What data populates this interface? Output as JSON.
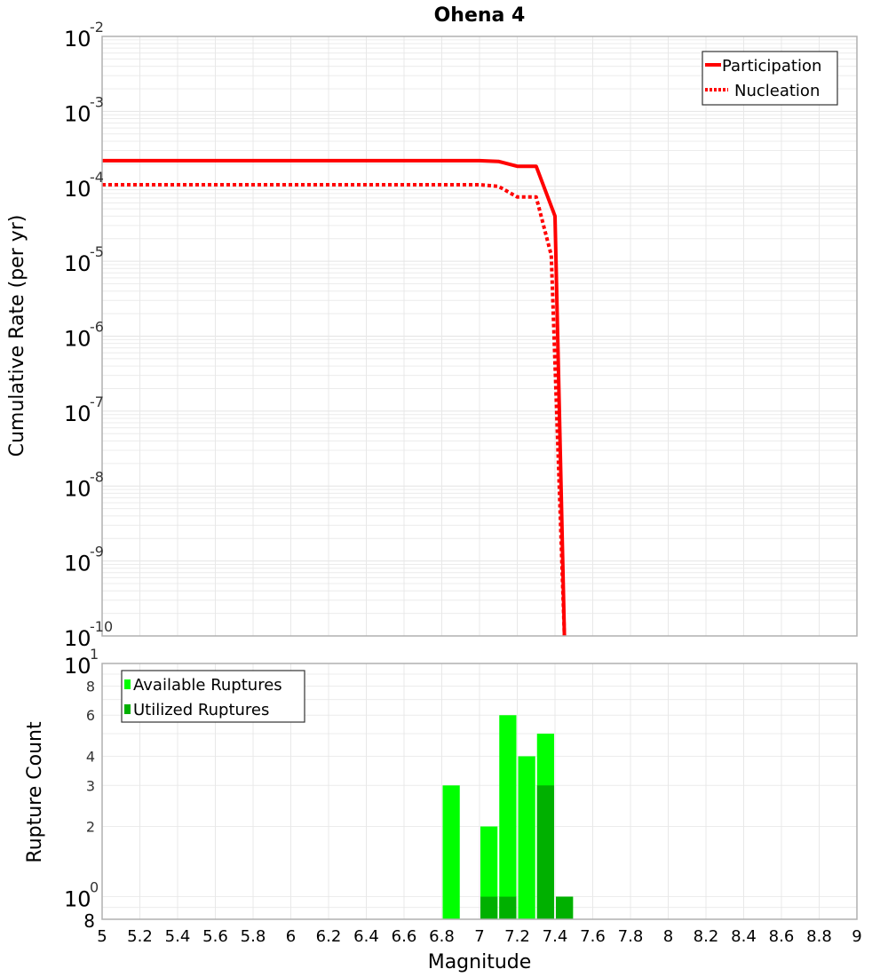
{
  "chart_data": [
    {
      "type": "line",
      "title": "Ohena 4",
      "xlabel": "Magnitude",
      "ylabel": "Cumulative Rate (per yr)",
      "yscale": "log",
      "xlim": [
        5,
        9
      ],
      "ylim": [
        1e-10,
        0.01
      ],
      "grid": true,
      "legend_position": "upper right",
      "y_ticks": [
        "10^-2",
        "10^-3",
        "10^-4",
        "10^-5",
        "10^-6",
        "10^-7",
        "10^-8",
        "10^-9",
        "10^-10"
      ],
      "series": [
        {
          "name": "Participation",
          "style": "solid",
          "color": "#ff0000",
          "x": [
            5.0,
            6.0,
            7.0,
            7.1,
            7.2,
            7.3,
            7.4,
            7.45
          ],
          "values": [
            0.00022,
            0.00022,
            0.00022,
            0.000215,
            0.000185,
            0.000185,
            4e-05,
            1e-10
          ]
        },
        {
          "name": "Nucleation",
          "style": "dotted",
          "color": "#ff0000",
          "x": [
            5.0,
            6.0,
            7.0,
            7.1,
            7.2,
            7.3,
            7.38,
            7.45
          ],
          "values": [
            0.000105,
            0.000105,
            0.000105,
            0.0001,
            7.2e-05,
            7.2e-05,
            1.2e-05,
            1e-10
          ]
        }
      ]
    },
    {
      "type": "bar",
      "xlabel": "Magnitude",
      "ylabel": "Rupture Count",
      "yscale": "log",
      "xlim": [
        5,
        9
      ],
      "ylim": [
        0.8,
        10
      ],
      "grid": true,
      "legend_position": "upper left",
      "y_ticks": [
        "8",
        "10^0",
        "2",
        "3",
        "4",
        "6",
        "8",
        "10^1"
      ],
      "x_ticks": [
        "5",
        "5.2",
        "5.4",
        "5.6",
        "5.8",
        "6",
        "6.2",
        "6.4",
        "6.6",
        "6.8",
        "7",
        "7.2",
        "7.4",
        "7.6",
        "7.8",
        "8",
        "8.2",
        "8.4",
        "8.6",
        "8.8",
        "9"
      ],
      "categories": [
        6.85,
        7.05,
        7.15,
        7.25,
        7.35,
        7.45
      ],
      "series": [
        {
          "name": "Available Ruptures",
          "color": "#00ff00",
          "values": [
            3,
            2,
            6,
            4,
            5,
            1
          ]
        },
        {
          "name": "Utilized Ruptures",
          "color": "#00b000",
          "values": [
            0,
            1,
            1,
            0,
            3,
            1
          ]
        }
      ]
    }
  ],
  "labels": {
    "title": "Ohena 4",
    "top_ylabel": "Cumulative Rate (per yr)",
    "bottom_ylabel": "Rupture Count",
    "xlabel": "Magnitude",
    "legend_top": [
      "Participation",
      "Nucleation"
    ],
    "legend_bottom": [
      "Available Ruptures",
      "Utilized Ruptures"
    ]
  }
}
